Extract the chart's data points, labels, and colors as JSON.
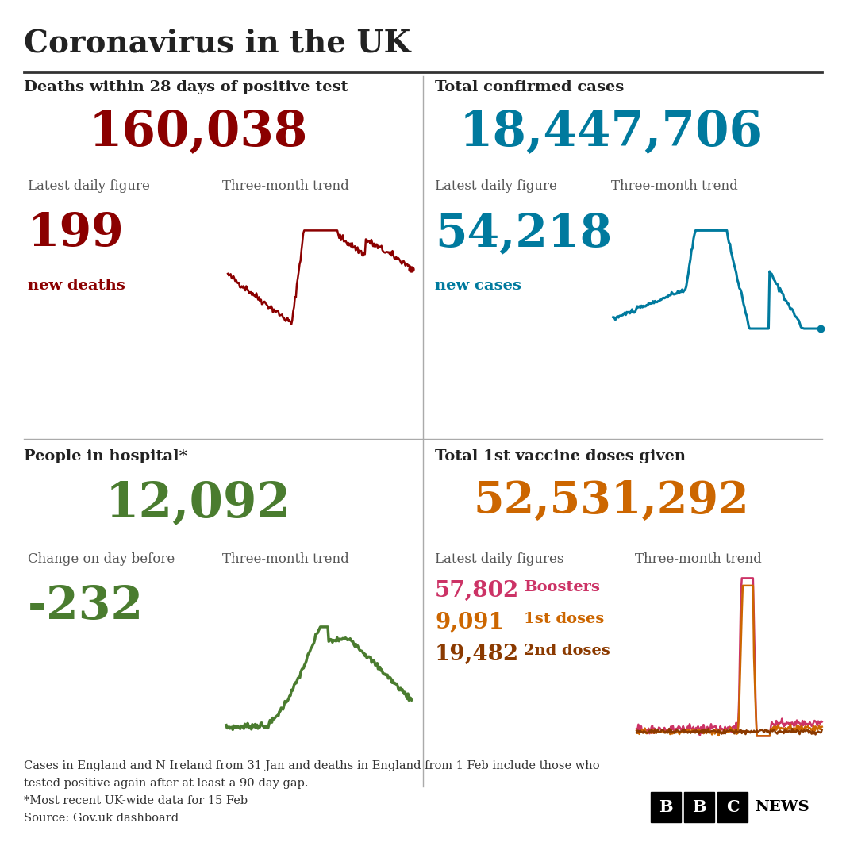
{
  "title": "Coronavirus in the UK",
  "bg_color": "#ffffff",
  "title_color": "#222222",
  "divider_color": "#aaaaaa",
  "deaths_total_label": "Deaths within 28 days of positive test",
  "deaths_total_value": "160,038",
  "deaths_total_color": "#8b0000",
  "deaths_daily_label": "Latest daily figure",
  "deaths_daily_value": "199",
  "deaths_daily_sublabel": "new deaths",
  "deaths_daily_color": "#8b0000",
  "deaths_trend_label": "Three-month trend",
  "cases_total_label": "Total confirmed cases",
  "cases_total_value": "18,447,706",
  "cases_total_color": "#007a9e",
  "cases_daily_label": "Latest daily figure",
  "cases_daily_value": "54,218",
  "cases_daily_sublabel": "new cases",
  "cases_daily_color": "#007a9e",
  "cases_trend_label": "Three-month trend",
  "hospital_total_label": "People in hospital*",
  "hospital_total_value": "12,092",
  "hospital_total_color": "#4a7c2f",
  "hospital_daily_label": "Change on day before",
  "hospital_daily_value": "-232",
  "hospital_daily_color": "#4a7c2f",
  "hospital_trend_label": "Three-month trend",
  "vaccine_total_label": "Total 1st vaccine doses given",
  "vaccine_total_value": "52,531,292",
  "vaccine_total_color": "#cc6600",
  "vaccine_daily_label": "Latest daily figures",
  "vaccine_booster_value": "57,802",
  "vaccine_booster_label": "Boosters",
  "vaccine_booster_color": "#cc3366",
  "vaccine_1st_value": "9,091",
  "vaccine_1st_label": "1st doses",
  "vaccine_1st_color": "#cc6600",
  "vaccine_2nd_value": "19,482",
  "vaccine_2nd_label": "2nd doses",
  "vaccine_2nd_color": "#8b3a00",
  "vaccine_trend_label": "Three-month trend",
  "footnote1": "Cases in England and N Ireland from 31 Jan and deaths in England from 1 Feb include those who",
  "footnote2": "tested positive again after at least a 90-day gap.",
  "footnote3": "*Most recent UK-wide data for 15 Feb",
  "footnote4": "Source: Gov.uk dashboard",
  "label_color": "#555555"
}
